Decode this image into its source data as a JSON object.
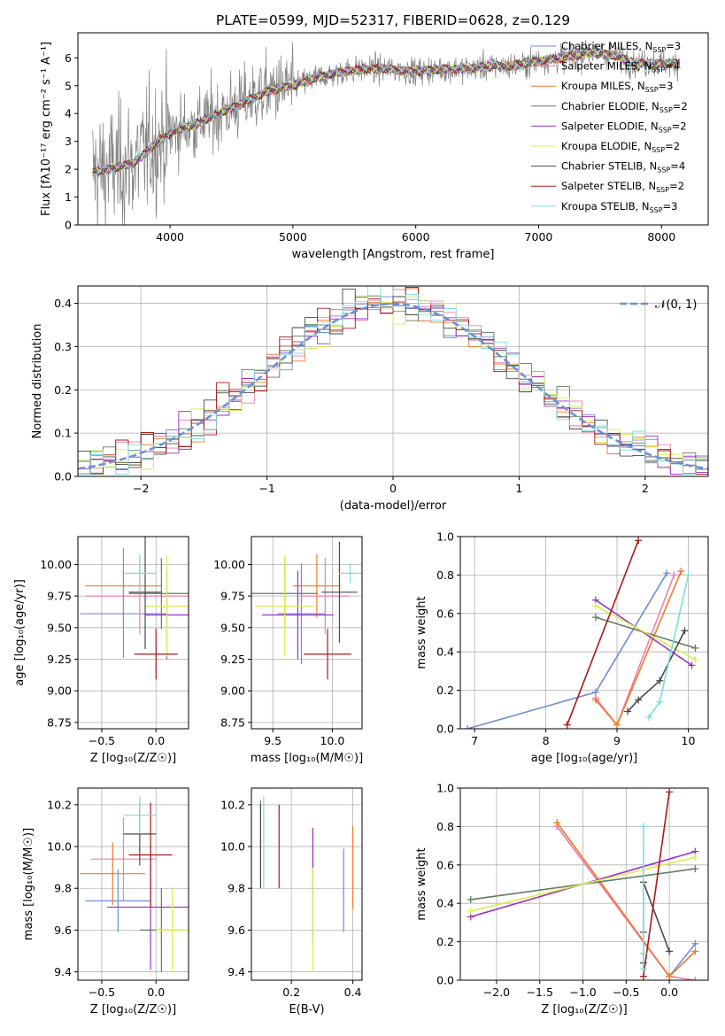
{
  "colors": {
    "Chabrier MILES": "#6a8fd8",
    "Salpeter MILES": "#f07fb2",
    "Kroupa MILES": "#f07a2a",
    "Chabrier ELODIE": "#5e7f5e",
    "Salpeter ELODIE": "#9b30c8",
    "Kroupa ELODIE": "#dbee4e",
    "Chabrier STELIB": "#4a4a4a",
    "Salpeter STELIB": "#a61a1a",
    "Kroupa STELIB": "#7fdcdc",
    "data": "#808080"
  },
  "chart_data": [
    {
      "id": "spectrum",
      "type": "line",
      "title": "PLATE=0599, MJD=52317, FIBERID=0628, z=0.129",
      "xlabel": "wavelength [Angstrom, rest frame]",
      "ylabel": "Flux [fλ10⁻¹⁷ erg cm⁻² s⁻¹ A⁻¹]",
      "xlim": [
        3250,
        8380
      ],
      "ylim": [
        0,
        6.9
      ],
      "xticks": [
        4000,
        5000,
        6000,
        7000,
        8000
      ],
      "yticks": [
        0,
        1,
        2,
        3,
        4,
        5,
        6
      ],
      "grid": false,
      "legend_position": "top-right",
      "legend": [
        {
          "name": "Chabrier MILES",
          "nssp": "3"
        },
        {
          "name": "Salpeter MILES",
          "nssp": "4"
        },
        {
          "name": "Kroupa MILES",
          "nssp": "3"
        },
        {
          "name": "Chabrier ELODIE",
          "nssp": "2"
        },
        {
          "name": "Salpeter ELODIE",
          "nssp": "2"
        },
        {
          "name": "Kroupa ELODIE",
          "nssp": "2"
        },
        {
          "name": "Chabrier STELIB",
          "nssp": "4"
        },
        {
          "name": "Salpeter STELIB",
          "nssp": "2"
        },
        {
          "name": "Kroupa STELIB",
          "nssp": "3"
        }
      ],
      "continuum": {
        "x": [
          3370,
          3500,
          3700,
          3850,
          4000,
          4200,
          4400,
          4600,
          4800,
          5000,
          5200,
          5400,
          5600,
          5800,
          6000,
          6200,
          6400,
          6600,
          6800,
          7000,
          7200,
          7400,
          7600,
          7800,
          8000,
          8150
        ],
        "y": [
          1.9,
          2.0,
          2.2,
          2.8,
          3.3,
          3.6,
          4.0,
          4.4,
          4.8,
          5.0,
          5.3,
          5.5,
          5.6,
          5.6,
          5.5,
          5.6,
          5.6,
          5.7,
          5.7,
          5.9,
          6.0,
          6.2,
          6.1,
          5.8,
          5.8,
          5.8
        ]
      },
      "data_range": [
        3370,
        8150
      ],
      "model_range": [
        3370,
        8150
      ]
    },
    {
      "id": "residuals",
      "type": "line",
      "xlabel": "(data-model)/error",
      "ylabel": "Normed distribution",
      "xlim": [
        -2.5,
        2.5
      ],
      "ylim": [
        0,
        0.44
      ],
      "xticks": [
        -2,
        -1,
        0,
        1,
        2
      ],
      "yticks": [
        0.0,
        0.1,
        0.2,
        0.3,
        0.4
      ],
      "grid": true,
      "legend_position": "top-right",
      "legend": [
        {
          "name": "𝒩(0, 1)"
        }
      ],
      "bin_width": 0.1
    },
    {
      "id": "age-vs-Z",
      "type": "errorbar",
      "xlabel": "Z [log₁₀(Z/Z☉)]",
      "ylabel": "age  [log₁₀(age/yr)]",
      "xlim": [
        -0.72,
        0.3
      ],
      "ylim": [
        8.7,
        10.22
      ],
      "xticks": [
        -0.5,
        0.0
      ],
      "yticks": [
        8.75,
        9.0,
        9.25,
        9.5,
        9.75,
        10.0
      ],
      "points": [
        {
          "model": "Chabrier MILES",
          "x": -0.3,
          "xerr": 0.4,
          "y": 9.61,
          "yerr": 0.35
        },
        {
          "model": "Salpeter MILES",
          "x": -0.15,
          "xerr": 0.5,
          "y": 9.75,
          "yerr": 0.3
        },
        {
          "model": "Kroupa MILES",
          "x": -0.3,
          "xerr": 0.35,
          "y": 9.83,
          "yerr": 0.3
        },
        {
          "model": "Chabrier ELODIE",
          "x": 0.05,
          "xerr": 0.3,
          "y": 9.77,
          "yerr": 0.28
        },
        {
          "model": "Salpeter ELODIE",
          "x": 0.1,
          "xerr": 0.2,
          "y": 9.6,
          "yerr": 0.35
        },
        {
          "model": "Kroupa ELODIE",
          "x": 0.1,
          "xerr": 0.2,
          "y": 9.67,
          "yerr": 0.4
        },
        {
          "model": "Chabrier STELIB",
          "x": -0.1,
          "xerr": 0.15,
          "y": 9.78,
          "yerr": 0.45
        },
        {
          "model": "Salpeter STELIB",
          "x": 0.0,
          "xerr": 0.2,
          "y": 9.29,
          "yerr": 0.2
        },
        {
          "model": "Kroupa STELIB",
          "x": -0.15,
          "xerr": 0.15,
          "y": 9.93,
          "yerr": 0.15
        }
      ]
    },
    {
      "id": "age-vs-mass",
      "type": "errorbar",
      "xlabel": "mass [log₁₀(M/M☉)]",
      "ylabel": "",
      "xlim": [
        9.32,
        10.25
      ],
      "ylim": [
        8.7,
        10.22
      ],
      "xticks": [
        9.5,
        10.0
      ],
      "yticks": [
        8.75,
        9.0,
        9.25,
        9.5,
        9.75,
        10.0
      ],
      "points": [
        {
          "model": "Chabrier MILES",
          "x": 9.74,
          "xerr": 0.2,
          "y": 9.61,
          "yerr": 0.4
        },
        {
          "model": "Salpeter MILES",
          "x": 9.94,
          "xerr": 0.2,
          "y": 9.75,
          "yerr": 0.3
        },
        {
          "model": "Kroupa MILES",
          "x": 9.87,
          "xerr": 0.2,
          "y": 9.83,
          "yerr": 0.25
        },
        {
          "model": "Chabrier ELODIE",
          "x": 9.6,
          "xerr": 0.28,
          "y": 9.77,
          "yerr": 0.28
        },
        {
          "model": "Salpeter ELODIE",
          "x": 9.71,
          "xerr": 0.3,
          "y": 9.6,
          "yerr": 0.35
        },
        {
          "model": "Kroupa ELODIE",
          "x": 9.6,
          "xerr": 0.25,
          "y": 9.67,
          "yerr": 0.4
        },
        {
          "model": "Chabrier STELIB",
          "x": 10.06,
          "xerr": 0.15,
          "y": 9.78,
          "yerr": 0.4
        },
        {
          "model": "Salpeter STELIB",
          "x": 9.96,
          "xerr": 0.2,
          "y": 9.29,
          "yerr": 0.2
        },
        {
          "model": "Kroupa STELIB",
          "x": 10.15,
          "xerr": 0.1,
          "y": 9.93,
          "yerr": 0.08
        }
      ]
    },
    {
      "id": "weight-vs-age",
      "type": "line",
      "xlabel": "age  [log₁₀(age/yr)]",
      "ylabel": "mass weight",
      "xlim": [
        6.8,
        10.28
      ],
      "ylim": [
        0,
        1
      ],
      "xticks": [
        7,
        8,
        9,
        10
      ],
      "yticks": [
        0.0,
        0.2,
        0.4,
        0.6,
        0.8,
        1.0
      ],
      "grid": true,
      "series": [
        {
          "model": "Chabrier MILES",
          "x": [
            6.9,
            8.7,
            9.7
          ],
          "y": [
            0.0,
            0.19,
            0.81
          ]
        },
        {
          "model": "Salpeter MILES",
          "x": [
            8.7,
            9.0,
            9.8
          ],
          "y": [
            0.16,
            0.02,
            0.8
          ]
        },
        {
          "model": "Kroupa MILES",
          "x": [
            8.7,
            9.0,
            9.9
          ],
          "y": [
            0.15,
            0.02,
            0.82
          ]
        },
        {
          "model": "Chabrier ELODIE",
          "x": [
            8.7,
            10.1
          ],
          "y": [
            0.58,
            0.42
          ]
        },
        {
          "model": "Salpeter ELODIE",
          "x": [
            8.7,
            10.05
          ],
          "y": [
            0.67,
            0.33
          ]
        },
        {
          "model": "Kroupa ELODIE",
          "x": [
            8.7,
            10.1
          ],
          "y": [
            0.64,
            0.36
          ]
        },
        {
          "model": "Chabrier STELIB",
          "x": [
            9.15,
            9.3,
            9.6,
            9.95
          ],
          "y": [
            0.09,
            0.15,
            0.25,
            0.51
          ]
        },
        {
          "model": "Salpeter STELIB",
          "x": [
            8.3,
            9.3
          ],
          "y": [
            0.02,
            0.98
          ]
        },
        {
          "model": "Kroupa STELIB",
          "x": [
            9.45,
            9.6,
            10.0
          ],
          "y": [
            0.06,
            0.14,
            0.8
          ]
        }
      ]
    },
    {
      "id": "mass-vs-Z",
      "type": "errorbar",
      "xlabel": "Z [log₁₀(Z/Z☉)]",
      "ylabel": "mass [log₁₀(M/M☉)]",
      "xlim": [
        -0.72,
        0.3
      ],
      "ylim": [
        9.36,
        10.28
      ],
      "xticks": [
        -0.5,
        0.0
      ],
      "yticks": [
        9.4,
        9.6,
        9.8,
        10.0,
        10.2
      ],
      "points": [
        {
          "model": "Chabrier MILES",
          "x": -0.35,
          "xerr": 0.3,
          "y": 9.74,
          "yerr": 0.15
        },
        {
          "model": "Salpeter MILES",
          "x": -0.3,
          "xerr": 0.3,
          "y": 9.94,
          "yerr": 0.2
        },
        {
          "model": "Kroupa MILES",
          "x": -0.4,
          "xerr": 0.3,
          "y": 9.87,
          "yerr": 0.15
        },
        {
          "model": "Chabrier ELODIE",
          "x": 0.05,
          "xerr": 0.2,
          "y": 9.6,
          "yerr": 0.2
        },
        {
          "model": "Salpeter ELODIE",
          "x": -0.05,
          "xerr": 0.4,
          "y": 9.71,
          "yerr": 0.3
        },
        {
          "model": "Kroupa ELODIE",
          "x": 0.15,
          "xerr": 0.15,
          "y": 9.6,
          "yerr": 0.2
        },
        {
          "model": "Chabrier STELIB",
          "x": -0.15,
          "xerr": 0.15,
          "y": 10.06,
          "yerr": 0.15
        },
        {
          "model": "Salpeter STELIB",
          "x": -0.05,
          "xerr": 0.2,
          "y": 9.96,
          "yerr": 0.25
        },
        {
          "model": "Kroupa STELIB",
          "x": -0.15,
          "xerr": 0.15,
          "y": 10.15,
          "yerr": 0.09
        }
      ]
    },
    {
      "id": "mass-vs-EBV",
      "type": "errorbar",
      "xlabel": "E(B-V)",
      "ylabel": "",
      "xlim": [
        0.07,
        0.43
      ],
      "ylim": [
        9.36,
        10.28
      ],
      "xticks": [
        0.2,
        0.4
      ],
      "yticks": [
        9.4,
        9.6,
        9.8,
        10.0,
        10.2
      ],
      "points": [
        {
          "model": "Chabrier MILES",
          "x": 0.37,
          "y": 9.79,
          "yerr": 0.2
        },
        {
          "model": "Salpeter MILES",
          "x": 0.27,
          "y": 9.94,
          "yerr": 0.15
        },
        {
          "model": "Kroupa MILES",
          "x": 0.4,
          "y": 9.9,
          "yerr": 0.2
        },
        {
          "model": "Chabrier ELODIE",
          "x": 0.1,
          "y": 10.02,
          "yerr": 0.2
        },
        {
          "model": "Salpeter ELODIE",
          "x": 0.27,
          "y": 9.81,
          "yerr": 0.28
        },
        {
          "model": "Kroupa ELODIE",
          "x": 0.27,
          "y": 9.65,
          "yerr": 0.25
        },
        {
          "model": "Chabrier STELIB",
          "x": 0.1,
          "y": 10.0,
          "yerr": 0.2
        },
        {
          "model": "Salpeter STELIB",
          "x": 0.16,
          "y": 10.0,
          "yerr": 0.2
        },
        {
          "model": "Kroupa STELIB",
          "x": 0.11,
          "y": 10.02,
          "yerr": 0.22
        }
      ]
    },
    {
      "id": "weight-vs-Z",
      "type": "line",
      "xlabel": "Z [log₁₀(Z/Z☉)]",
      "ylabel": "mass weight",
      "xlim": [
        -2.42,
        0.45
      ],
      "ylim": [
        0,
        1
      ],
      "xticks": [
        -2.0,
        -1.5,
        -1.0,
        -0.5,
        0.0
      ],
      "yticks": [
        0.0,
        0.2,
        0.4,
        0.6,
        0.8,
        1.0
      ],
      "grid": true,
      "series": [
        {
          "model": "Chabrier MILES",
          "x": [
            -1.3,
            0.0,
            0.3
          ],
          "y": [
            0.8,
            0.02,
            0.19
          ]
        },
        {
          "model": "Salpeter MILES",
          "x": [
            -1.3,
            0.0,
            0.3
          ],
          "y": [
            0.8,
            0.02,
            0.0
          ]
        },
        {
          "model": "Kroupa MILES",
          "x": [
            -1.3,
            0.0,
            0.3
          ],
          "y": [
            0.82,
            0.02,
            0.15
          ]
        },
        {
          "model": "Chabrier ELODIE",
          "x": [
            -2.3,
            0.3
          ],
          "y": [
            0.42,
            0.58
          ]
        },
        {
          "model": "Salpeter ELODIE",
          "x": [
            -2.3,
            0.3
          ],
          "y": [
            0.33,
            0.67
          ]
        },
        {
          "model": "Kroupa ELODIE",
          "x": [
            -2.3,
            0.3
          ],
          "y": [
            0.36,
            0.64
          ]
        },
        {
          "model": "Chabrier STELIB",
          "x": [
            -0.3,
            -0.3,
            -0.3,
            0.0
          ],
          "y": [
            0.09,
            0.25,
            0.51,
            0.15
          ]
        },
        {
          "model": "Salpeter STELIB",
          "x": [
            -0.3,
            0.0
          ],
          "y": [
            0.02,
            0.98
          ]
        },
        {
          "model": "Kroupa STELIB",
          "x": [
            -0.3,
            -0.3,
            -0.3
          ],
          "y": [
            0.06,
            0.14,
            0.8
          ]
        }
      ]
    }
  ]
}
